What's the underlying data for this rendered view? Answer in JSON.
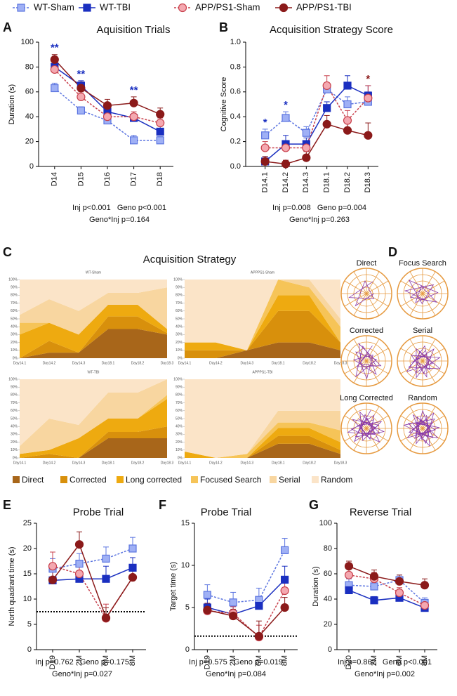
{
  "groups": [
    {
      "name": "WT-Sham",
      "color": "#5b74e0",
      "fill": "#9fb0f5",
      "marker": "square",
      "dashed": true
    },
    {
      "name": "WT-TBI",
      "color": "#1a2fc0",
      "fill": "#1a2fc0",
      "marker": "square",
      "dashed": false
    },
    {
      "name": "APP/PS1-Sham",
      "color": "#c8404c",
      "fill": "#f4a8b0",
      "marker": "circle",
      "dashed": true
    },
    {
      "name": "APP/PS1-TBI",
      "color": "#8b1a1a",
      "fill": "#8b1a1a",
      "marker": "circle",
      "dashed": false
    }
  ],
  "chart_data": [
    {
      "panel": "A",
      "type": "line",
      "title": "Aquisition Trials",
      "y_label": "Duration (s)",
      "categories": [
        "D14",
        "D15",
        "D16",
        "D17",
        "D18"
      ],
      "ylim": [
        0,
        100
      ],
      "yticks": [
        0,
        20,
        40,
        60,
        80,
        100
      ],
      "series": [
        {
          "values": [
            63,
            45,
            37,
            21,
            21
          ],
          "errors": [
            4,
            3,
            3,
            4,
            3
          ]
        },
        {
          "values": [
            80,
            65,
            44,
            39,
            28
          ],
          "errors": [
            4,
            4,
            4,
            3,
            5
          ]
        },
        {
          "values": [
            78,
            56,
            40,
            40,
            35
          ],
          "errors": [
            4,
            4,
            4,
            4,
            4
          ]
        },
        {
          "values": [
            86,
            63,
            49,
            51,
            42
          ],
          "errors": [
            4,
            5,
            5,
            5,
            5
          ]
        }
      ],
      "annotations": [
        {
          "text": "**",
          "category": "D14",
          "color": "#1a2fc0"
        },
        {
          "text": "**",
          "category": "D15",
          "color": "#1a2fc0"
        },
        {
          "text": "**",
          "category": "D17",
          "color": "#1a2fc0"
        }
      ],
      "stats": [
        "Inj p<0.001   Geno p<0.001",
        "Geno*Inj p=0.164"
      ]
    },
    {
      "panel": "B",
      "type": "line",
      "title": "Acquisition Strategy Score",
      "y_label": "Cognitive Score",
      "categories": [
        "D14.1",
        "D14.2",
        "D14.3",
        "D18.1",
        "D18.2",
        "D18.3"
      ],
      "ylim": [
        0,
        1
      ],
      "yticks": [
        {
          "value": 0,
          "label": "0.0"
        },
        0.2,
        0.4,
        0.6,
        0.8,
        {
          "value": 1,
          "label": "1.0"
        }
      ],
      "series": [
        {
          "values": [
            0.25,
            0.39,
            0.27,
            0.62,
            0.5,
            0.52
          ],
          "errors": [
            0.05,
            0.05,
            0.05,
            0.05,
            0.06,
            0.08
          ]
        },
        {
          "values": [
            0.04,
            0.18,
            0.18,
            0.47,
            0.65,
            0.57
          ],
          "errors": [
            0.04,
            0.07,
            0.05,
            0.05,
            0.08,
            0.08
          ]
        },
        {
          "values": [
            0.15,
            0.15,
            0.15,
            0.65,
            0.37,
            0.55
          ],
          "errors": [
            0.05,
            0.05,
            0.05,
            0.08,
            0.08,
            0.1
          ]
        },
        {
          "values": [
            0.04,
            0.02,
            0.07,
            0.34,
            0.29,
            0.25
          ],
          "errors": [
            0.04,
            0.03,
            0.05,
            0.07,
            0.08,
            0.1
          ]
        }
      ],
      "annotations": [
        {
          "text": "*",
          "category": "D14.1",
          "color": "#1a2fc0"
        },
        {
          "text": "*",
          "category": "D14.2",
          "color": "#1a2fc0"
        },
        {
          "text": "*",
          "category": "D18.3",
          "color": "#8b1a1a"
        }
      ],
      "stats": [
        "Inj p=0.008   Geno p=0.004",
        "Geno*Inj p=0.263"
      ]
    },
    {
      "panel": "C",
      "type": "stacked-area",
      "title": "Acquisition Strategy",
      "categories": [
        "Day14.1",
        "Day14.2",
        "Day14.3",
        "Day18.1",
        "Day18.2",
        "Day18.3"
      ],
      "ylim": [
        0,
        100
      ],
      "yticks": [
        {
          "value": 0,
          "label": "0%"
        },
        {
          "value": 10,
          "label": "10%"
        },
        {
          "value": 20,
          "label": "20%"
        },
        {
          "value": 30,
          "label": "30%"
        },
        {
          "value": 40,
          "label": "40%"
        },
        {
          "value": 50,
          "label": "50%"
        },
        {
          "value": 60,
          "label": "60%"
        },
        {
          "value": 70,
          "label": "70%"
        },
        {
          "value": 80,
          "label": "80%"
        },
        {
          "value": 90,
          "label": "90%"
        },
        {
          "value": 100,
          "label": "100%"
        }
      ],
      "series": [
        {
          "name": "Direct",
          "color": "#a8661a"
        },
        {
          "name": "Corrected",
          "color": "#d8900c"
        },
        {
          "name": "Long corrected",
          "color": "#eeaa10"
        },
        {
          "name": "Focused Search",
          "color": "#f6c458"
        },
        {
          "name": "Serial",
          "color": "#f8d6a0"
        },
        {
          "name": "Random",
          "color": "#fbe4c8"
        }
      ],
      "subplots": [
        {
          "title": "WT-Sham",
          "values": [
            [
              0,
              7,
              7,
              37,
              37,
              30
            ],
            [
              0,
              15,
              0,
              16,
              16,
              2
            ],
            [
              30,
              23,
              23,
              15,
              15,
              5
            ],
            [
              15,
              0,
              0,
              0,
              0,
              0
            ],
            [
              10,
              30,
              30,
              15,
              15,
              53
            ],
            [
              45,
              25,
              40,
              17,
              17,
              10
            ]
          ]
        },
        {
          "title": "APPPS1-Sham",
          "values": [
            [
              0,
              0,
              10,
              20,
              20,
              10
            ],
            [
              10,
              10,
              0,
              40,
              40,
              10
            ],
            [
              10,
              10,
              0,
              20,
              20,
              0
            ],
            [
              0,
              0,
              0,
              20,
              10,
              20
            ],
            [
              0,
              0,
              0,
              0,
              10,
              10
            ],
            [
              80,
              80,
              90,
              0,
              0,
              50
            ]
          ]
        },
        {
          "title": "WT-TBI",
          "values": [
            [
              0,
              0,
              0,
              25,
              25,
              25
            ],
            [
              0,
              5,
              0,
              8,
              8,
              15
            ],
            [
              5,
              5,
              25,
              17,
              17,
              35
            ],
            [
              0,
              0,
              0,
              0,
              0,
              5
            ],
            [
              10,
              40,
              17,
              33,
              33,
              20
            ],
            [
              85,
              50,
              58,
              17,
              17,
              0
            ]
          ]
        },
        {
          "title": "APPPS1-TBI",
          "values": [
            [
              0,
              0,
              0,
              18,
              18,
              5
            ],
            [
              0,
              0,
              0,
              10,
              10,
              5
            ],
            [
              8,
              0,
              0,
              10,
              10,
              10
            ],
            [
              0,
              0,
              5,
              7,
              7,
              15
            ],
            [
              0,
              0,
              0,
              15,
              15,
              25
            ],
            [
              92,
              100,
              95,
              40,
              40,
              40
            ]
          ]
        }
      ]
    },
    {
      "panel": "E",
      "type": "line",
      "title": "Probe Trial",
      "y_label": "North quadrant time (s)",
      "categories": [
        "D19",
        "2M",
        "6M",
        "8M"
      ],
      "ylim": [
        0,
        25
      ],
      "yticks": [
        0,
        5,
        10,
        15,
        20,
        25
      ],
      "reference_line": 7.5,
      "series": [
        {
          "values": [
            16,
            17,
            18,
            20
          ],
          "errors": [
            2,
            2,
            2.3,
            2.2
          ]
        },
        {
          "values": [
            13.7,
            14,
            14,
            16.2
          ],
          "errors": [
            2,
            2.5,
            2.5,
            2
          ]
        },
        {
          "values": [
            16.5,
            15,
            6.2,
            14.3
          ],
          "errors": [
            2.8,
            1.5,
            2.8,
            2
          ]
        },
        {
          "values": [
            13.8,
            20.8,
            6.3,
            14.3
          ],
          "errors": [
            2.5,
            2.5,
            2,
            2
          ]
        }
      ],
      "stats": [
        "Inj p=0.762   Geno p=0.175",
        "Geno*Inj p=0.027"
      ]
    },
    {
      "panel": "F",
      "type": "line",
      "title": "Probe Trial",
      "y_label": "Target time (s)",
      "categories": [
        "D19",
        "2M",
        "6M",
        "8M"
      ],
      "ylim": [
        0,
        15
      ],
      "yticks": [
        0,
        5,
        10,
        15
      ],
      "reference_line": 1.6,
      "series": [
        {
          "values": [
            6.5,
            5.6,
            5.9,
            11.8
          ],
          "errors": [
            1.2,
            1.2,
            1.4,
            1.4
          ]
        },
        {
          "values": [
            5,
            4.2,
            5.2,
            8.3
          ],
          "errors": [
            1,
            0.9,
            1,
            1.6
          ]
        },
        {
          "values": [
            4.6,
            4.3,
            1.5,
            7
          ],
          "errors": [
            0.8,
            0.8,
            1.4,
            1.2
          ]
        },
        {
          "values": [
            4.7,
            4,
            1.6,
            5
          ],
          "errors": [
            0.8,
            0.8,
            1.8,
            1.2
          ]
        }
      ],
      "stats": [
        "Inj p=0.575   Geno p=0.019",
        "Geno*Inj p=0.084"
      ]
    },
    {
      "panel": "G",
      "type": "line",
      "title": "Reverse Trial",
      "y_label": "Duration (s)",
      "categories": [
        "D20",
        "2M",
        "6M",
        "8M"
      ],
      "ylim": [
        0,
        100
      ],
      "yticks": [
        0,
        20,
        40,
        60,
        80,
        100
      ],
      "series": [
        {
          "values": [
            51,
            50,
            55,
            37
          ],
          "errors": [
            5,
            4,
            4,
            4
          ]
        },
        {
          "values": [
            47,
            39,
            41,
            33
          ],
          "errors": [
            3,
            3,
            3,
            3
          ]
        },
        {
          "values": [
            59,
            56,
            45,
            35
          ],
          "errors": [
            5,
            5,
            4,
            4
          ]
        },
        {
          "values": [
            66,
            58,
            54,
            51
          ],
          "errors": [
            4,
            5,
            5,
            5
          ]
        }
      ],
      "stats": [
        "Inj p=0.862   Geno p<0.001",
        "Geno*Inj p=0.002"
      ]
    }
  ],
  "diagram": {
    "panel": "D",
    "labels": [
      "Direct",
      "Focus Search",
      "Corrected",
      "Serial",
      "Long Corrected",
      "Random"
    ]
  }
}
